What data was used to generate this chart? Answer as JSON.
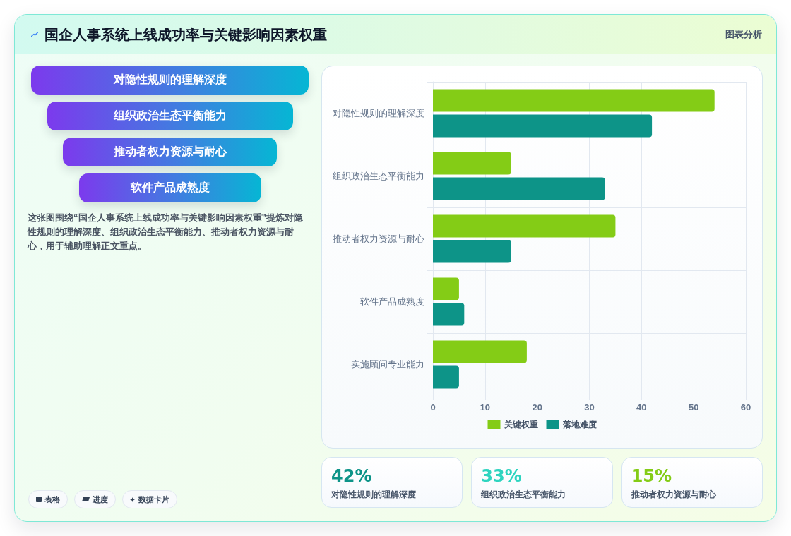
{
  "chart_data": [
    {
      "type": "other",
      "title": "国企人事系统上线成功率与关键影响因素权重",
      "categories": [
        "对隐性规则的理解深度",
        "组织政治生态平衡能力",
        "推动者权力资源与耐心",
        "软件产品成熟度"
      ],
      "annotations": [
        "图表分析",
        "这张图围绕“国企人事系统上线成功率与关键影响因素权重”提炼对隐性规则的理解深度、组织政治生态平衡能力、推动者权力资源与耐心，用于辅助理解正文重点。",
        "表格",
        "进度",
        "数据卡片"
      ]
    },
    {
      "type": "bar",
      "orientation": "horizontal",
      "categories": [
        "对隐性规则的理解深度",
        "组织政治生态平衡能力",
        "推动者权力资源与耐心",
        "软件产品成熟度",
        "实施顾问专业能力"
      ],
      "series": [
        {
          "name": "关键权重",
          "color": "#84cc16",
          "values": [
            54,
            15,
            35,
            5,
            18
          ]
        },
        {
          "name": "落地难度",
          "color": "#0d9488",
          "values": [
            42,
            33,
            15,
            6,
            5
          ]
        }
      ],
      "xlim": [
        0,
        60
      ],
      "xticks": [
        0,
        10,
        20,
        30,
        40,
        50,
        60
      ],
      "grid": true,
      "legend": "bottom"
    },
    {
      "type": "other",
      "categories": [
        "对隐性规则的理解深度",
        "组织政治生态平衡能力",
        "推动者权力资源与耐心"
      ],
      "value_labels": [
        "42%",
        "33%",
        "15%"
      ]
    }
  ]
}
